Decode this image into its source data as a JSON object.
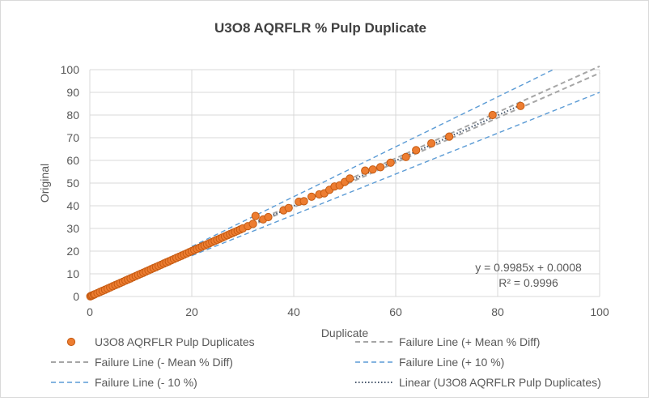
{
  "chart_data": {
    "type": "scatter",
    "title": "U3O8 AQRFLR % Pulp Duplicate",
    "xlabel": "Duplicate",
    "ylabel": "Original",
    "xlim": [
      0,
      100
    ],
    "ylim": [
      0,
      100
    ],
    "x_ticks": [
      "0",
      "20",
      "40",
      "60",
      "80",
      "100"
    ],
    "y_ticks": [
      "0",
      "10",
      "20",
      "30",
      "40",
      "50",
      "60",
      "70",
      "80",
      "90",
      "100"
    ],
    "grid": true,
    "legend_position": "bottom",
    "equation": "y = 0.9985x + 0.0008",
    "r_squared": "R² = 0.9996",
    "colors": {
      "points": "#ed7d31",
      "points_edge": "#c55a11",
      "mean_diff": "#a6a6a6",
      "ten_percent": "#5b9bd5",
      "linear": "#44546a"
    },
    "series": [
      {
        "name": "U3O8 AQRFLR Pulp Duplicates",
        "kind": "points",
        "points": [
          [
            0.1,
            0.1
          ],
          [
            0.3,
            0.3
          ],
          [
            0.5,
            0.5
          ],
          [
            0.8,
            0.8
          ],
          [
            1.0,
            1.0
          ],
          [
            1.5,
            1.5
          ],
          [
            2.0,
            2.0
          ],
          [
            2.5,
            2.5
          ],
          [
            3.0,
            3.0
          ],
          [
            3.5,
            3.5
          ],
          [
            4.0,
            4.0
          ],
          [
            4.5,
            4.5
          ],
          [
            5.0,
            5.0
          ],
          [
            5.5,
            5.5
          ],
          [
            6.0,
            6.0
          ],
          [
            6.5,
            6.5
          ],
          [
            7.0,
            7.0
          ],
          [
            7.5,
            7.5
          ],
          [
            8.0,
            8.0
          ],
          [
            8.5,
            8.5
          ],
          [
            9.0,
            9.0
          ],
          [
            9.5,
            9.5
          ],
          [
            10.0,
            10.0
          ],
          [
            10.5,
            10.5
          ],
          [
            11.0,
            11.0
          ],
          [
            11.5,
            11.5
          ],
          [
            12.0,
            12.0
          ],
          [
            12.5,
            12.5
          ],
          [
            13.0,
            13.0
          ],
          [
            13.5,
            13.5
          ],
          [
            14.0,
            14.0
          ],
          [
            14.5,
            14.5
          ],
          [
            15.0,
            15.0
          ],
          [
            15.5,
            15.5
          ],
          [
            16.0,
            16.0
          ],
          [
            16.5,
            16.5
          ],
          [
            17.0,
            17.0
          ],
          [
            17.5,
            17.5
          ],
          [
            18.0,
            18.0
          ],
          [
            18.5,
            18.5
          ],
          [
            19.0,
            19.0
          ],
          [
            19.5,
            19.5
          ],
          [
            20.0,
            20.0
          ],
          [
            20.5,
            20.5
          ],
          [
            21.0,
            21.0
          ],
          [
            21.5,
            21.5
          ],
          [
            22.0,
            22.0
          ],
          [
            22.5,
            22.5
          ],
          [
            23.0,
            23.0
          ],
          [
            23.5,
            23.5
          ],
          [
            24.0,
            24.0
          ],
          [
            24.5,
            24.5
          ],
          [
            25.0,
            25.0
          ],
          [
            25.5,
            25.5
          ],
          [
            26.0,
            26.0
          ],
          [
            26.5,
            26.5
          ],
          [
            27.0,
            27.0
          ],
          [
            27.5,
            27.5
          ],
          [
            28.0,
            28.0
          ],
          [
            28.5,
            28.5
          ],
          [
            29.0,
            29.0
          ],
          [
            29.5,
            29.5
          ],
          [
            30.0,
            30.0
          ],
          [
            31.0,
            31.0
          ],
          [
            32.0,
            32.0
          ],
          [
            32.5,
            35.5
          ],
          [
            34.0,
            34.0
          ],
          [
            35.0,
            35.0
          ],
          [
            38.0,
            38.0
          ],
          [
            39.0,
            39.0
          ],
          [
            41.0,
            41.8
          ],
          [
            42.0,
            42.0
          ],
          [
            43.5,
            44.0
          ],
          [
            45.0,
            45.0
          ],
          [
            46.0,
            45.5
          ],
          [
            47.0,
            47.0
          ],
          [
            48.0,
            48.5
          ],
          [
            49.0,
            49.0
          ],
          [
            50.0,
            50.5
          ],
          [
            51.0,
            52.0
          ],
          [
            54.0,
            55.5
          ],
          [
            55.5,
            56.0
          ],
          [
            57.0,
            57.0
          ],
          [
            59.0,
            59.0
          ],
          [
            62.0,
            61.5
          ],
          [
            64.0,
            64.5
          ],
          [
            67.0,
            67.5
          ],
          [
            70.5,
            70.5
          ],
          [
            79.0,
            80.0
          ],
          [
            84.5,
            84.0
          ]
        ]
      },
      {
        "name": "Failure Line (+ Mean % Diff)",
        "kind": "line",
        "dash": "dashed",
        "points": [
          [
            20,
            20.4
          ],
          [
            100,
            101.5
          ]
        ]
      },
      {
        "name": "Failure Line (- Mean % Diff)",
        "kind": "line",
        "dash": "dashed",
        "points": [
          [
            20,
            19.6
          ],
          [
            100,
            98.5
          ]
        ]
      },
      {
        "name": "Failure Line (+ 10 %)",
        "kind": "line",
        "dash": "dashed",
        "points": [
          [
            20,
            22
          ],
          [
            90.9,
            100
          ]
        ]
      },
      {
        "name": "Failure Line (- 10 %)",
        "kind": "line",
        "dash": "dashed",
        "points": [
          [
            20,
            18
          ],
          [
            100,
            90
          ]
        ]
      },
      {
        "name": "Linear (U3O8 AQRFLR Pulp Duplicates)",
        "kind": "line",
        "dash": "dotted",
        "points": [
          [
            0,
            0.0008
          ],
          [
            85,
            84.87
          ]
        ]
      }
    ]
  }
}
